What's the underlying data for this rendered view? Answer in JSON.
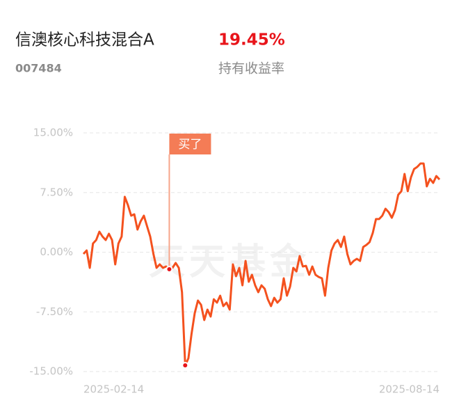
{
  "chart_data": {
    "type": "line",
    "title": "信澳核心科技混合A",
    "subtitle": "007484",
    "holding_return": {
      "value": 19.45,
      "label": "19.45%"
    },
    "holding_return_label": "持有收益率",
    "watermark": "天天基金",
    "color": "#f4511e",
    "categories": [
      "2025-02-14",
      null,
      null,
      null,
      null,
      null,
      null,
      null,
      null,
      null,
      null,
      null,
      null,
      null,
      null,
      null,
      null,
      null,
      null,
      null,
      null,
      null,
      null,
      null,
      null,
      null,
      null,
      null,
      null,
      null,
      null,
      null,
      null,
      null,
      null,
      null,
      null,
      null,
      null,
      null,
      null,
      null,
      null,
      null,
      null,
      null,
      null,
      null,
      null,
      null,
      null,
      null,
      null,
      null,
      null,
      null,
      null,
      null,
      null,
      null,
      null,
      null,
      null,
      null,
      null,
      null,
      null,
      null,
      null,
      null,
      null,
      null,
      null,
      null,
      null,
      null,
      null,
      null,
      null,
      null,
      null,
      null,
      null,
      null,
      null,
      null,
      null,
      null,
      null,
      null,
      null,
      null,
      null,
      null,
      null,
      null,
      null,
      null,
      null,
      null,
      null,
      null,
      null,
      null,
      null,
      null,
      null,
      null,
      null,
      null,
      null,
      null,
      "2025-08-14"
    ],
    "values": [
      -0.22,
      0.22,
      -1.97,
      1.09,
      1.53,
      2.58,
      1.97,
      1.53,
      2.32,
      1.53,
      -1.53,
      1.09,
      1.97,
      6.96,
      5.91,
      4.59,
      4.77,
      2.84,
      3.89,
      4.59,
      3.28,
      1.97,
      -0.22,
      -1.97,
      -1.53,
      -1.97,
      -1.79,
      -2.14,
      -1.97,
      -1.36,
      -1.97,
      -5.03,
      -14.22,
      -13.34,
      -10.28,
      -7.66,
      -6.08,
      -6.61,
      -8.53,
      -7.22,
      -8.09,
      -5.91,
      -6.34,
      -5.47,
      -6.78,
      -6.34,
      -7.22,
      -1.53,
      -3.02,
      -1.97,
      -4.16,
      -1.09,
      -3.72,
      -2.84,
      -4.16,
      -5.03,
      -4.16,
      -4.59,
      -5.91,
      -6.78,
      -5.73,
      -6.34,
      -5.91,
      -3.28,
      -5.47,
      -4.33,
      -1.97,
      -2.41,
      -0.48,
      -1.79,
      -1.71,
      -2.84,
      -1.79,
      -2.84,
      -3.11,
      -3.28,
      -5.47,
      -1.97,
      0.22,
      1.09,
      1.53,
      0.66,
      1.97,
      -0.22,
      -1.53,
      -1.09,
      -0.83,
      -1.09,
      0.66,
      0.92,
      1.27,
      2.41,
      4.16,
      4.16,
      4.59,
      5.47,
      5.03,
      4.33,
      5.29,
      7.22,
      7.66,
      9.84,
      7.66,
      9.41,
      10.45,
      10.72,
      11.15,
      11.15,
      8.27,
      9.23,
      8.71,
      9.58,
      9.14
    ],
    "annotations": [
      {
        "text": "买了",
        "category_index": 27
      }
    ],
    "ylim": [
      -15,
      15
    ],
    "yticks": [
      {
        "value": 15,
        "label": "15.00%"
      },
      {
        "value": 7.5,
        "label": "7.50%"
      },
      {
        "value": 0,
        "label": "0.00%"
      },
      {
        "value": -7.5,
        "label": "-7.50%"
      },
      {
        "value": -15,
        "label": "-15.00%"
      }
    ],
    "grid": true
  }
}
